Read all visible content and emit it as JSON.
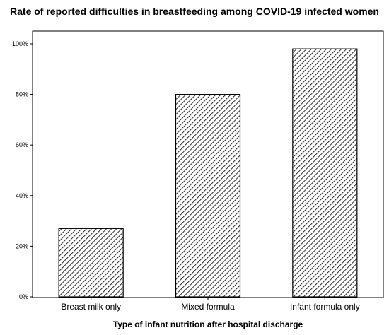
{
  "chart_data": {
    "type": "bar",
    "title": "Rate of reported difficulties in breastfeeding among COVID-19 infected women",
    "xlabel": "Type of infant nutrition after hospital discharge",
    "ylabel": "",
    "categories": [
      "Breast milk only",
      "Mixed formula",
      "Infant formula only"
    ],
    "values": [
      27,
      80,
      98
    ],
    "ylim": [
      0,
      100
    ],
    "yticks": [
      0,
      20,
      40,
      60,
      80,
      100
    ],
    "ytick_labels": [
      "0%",
      "20%",
      "40%",
      "60%",
      "80%",
      "100%"
    ],
    "bar_fill": "diagonal-hatch",
    "bar_color": "#000000",
    "grid": false,
    "legend": "none"
  }
}
